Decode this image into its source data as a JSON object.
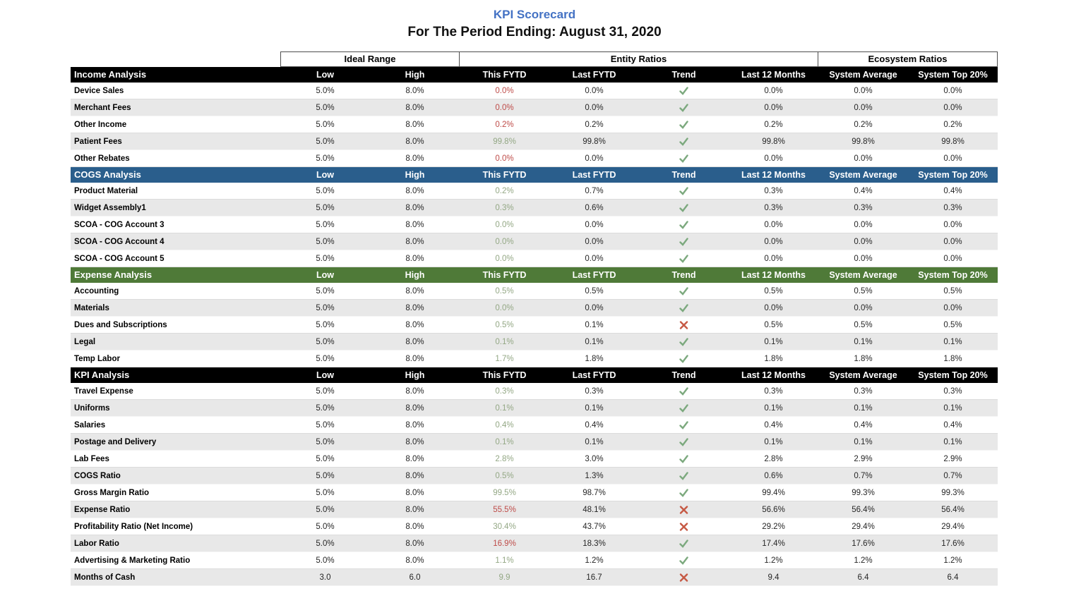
{
  "page": {
    "title": "KPI Scorecard",
    "subtitle": "For The Period Ending: August 31, 2020"
  },
  "colors": {
    "title": "#4472C4",
    "black_header": "#000000",
    "cogs_header": "#2A5E8C",
    "expense_header": "#4F7A38",
    "stripe": "#E8E8E8",
    "value_green": "#93A784",
    "value_red": "#BE4B48",
    "check_green": "#7CA97E",
    "x_red": "#C65944"
  },
  "table": {
    "group_headers": [
      {
        "label": "Ideal Range",
        "span": 2
      },
      {
        "label": "Entity Ratios",
        "span": 4
      },
      {
        "label": "Ecosystem Ratios",
        "span": 2
      }
    ],
    "columns": [
      "Low",
      "High",
      "This FYTD",
      "Last FYTD",
      "Trend",
      "Last 12 Months",
      "System Average",
      "System Top 20%"
    ],
    "row_keys": [
      "low",
      "high",
      "this_fytd",
      "last_fytd",
      "trend",
      "last_12_months",
      "system_average",
      "system_top_20"
    ],
    "sections": [
      {
        "name": "Income Analysis",
        "theme": "black",
        "rows": [
          {
            "label": "Device Sales",
            "low": "5.0%",
            "high": "8.0%",
            "this_fytd": "0.0%",
            "fytd_color": "red",
            "last_fytd": "0.0%",
            "trend": "check",
            "last_12_months": "0.0%",
            "system_average": "0.0%",
            "system_top_20": "0.0%"
          },
          {
            "label": "Merchant Fees",
            "low": "5.0%",
            "high": "8.0%",
            "this_fytd": "0.0%",
            "fytd_color": "red",
            "last_fytd": "0.0%",
            "trend": "check",
            "last_12_months": "0.0%",
            "system_average": "0.0%",
            "system_top_20": "0.0%"
          },
          {
            "label": "Other Income",
            "low": "5.0%",
            "high": "8.0%",
            "this_fytd": "0.2%",
            "fytd_color": "red",
            "last_fytd": "0.2%",
            "trend": "check",
            "last_12_months": "0.2%",
            "system_average": "0.2%",
            "system_top_20": "0.2%"
          },
          {
            "label": "Patient Fees",
            "low": "5.0%",
            "high": "8.0%",
            "this_fytd": "99.8%",
            "fytd_color": "green",
            "last_fytd": "99.8%",
            "trend": "check",
            "last_12_months": "99.8%",
            "system_average": "99.8%",
            "system_top_20": "99.8%"
          },
          {
            "label": "Other Rebates",
            "low": "5.0%",
            "high": "8.0%",
            "this_fytd": "0.0%",
            "fytd_color": "red",
            "last_fytd": "0.0%",
            "trend": "check",
            "last_12_months": "0.0%",
            "system_average": "0.0%",
            "system_top_20": "0.0%"
          }
        ]
      },
      {
        "name": "COGS Analysis",
        "theme": "blue",
        "rows": [
          {
            "label": "Product Material",
            "low": "5.0%",
            "high": "8.0%",
            "this_fytd": "0.2%",
            "fytd_color": "green",
            "last_fytd": "0.7%",
            "trend": "check",
            "last_12_months": "0.3%",
            "system_average": "0.4%",
            "system_top_20": "0.4%"
          },
          {
            "label": "Widget Assembly1",
            "low": "5.0%",
            "high": "8.0%",
            "this_fytd": "0.3%",
            "fytd_color": "green",
            "last_fytd": "0.6%",
            "trend": "check",
            "last_12_months": "0.3%",
            "system_average": "0.3%",
            "system_top_20": "0.3%"
          },
          {
            "label": "SCOA - COG Account 3",
            "low": "5.0%",
            "high": "8.0%",
            "this_fytd": "0.0%",
            "fytd_color": "green",
            "last_fytd": "0.0%",
            "trend": "check",
            "last_12_months": "0.0%",
            "system_average": "0.0%",
            "system_top_20": "0.0%"
          },
          {
            "label": "SCOA - COG Account 4",
            "low": "5.0%",
            "high": "8.0%",
            "this_fytd": "0.0%",
            "fytd_color": "green",
            "last_fytd": "0.0%",
            "trend": "check",
            "last_12_months": "0.0%",
            "system_average": "0.0%",
            "system_top_20": "0.0%"
          },
          {
            "label": "SCOA - COG Account 5",
            "low": "5.0%",
            "high": "8.0%",
            "this_fytd": "0.0%",
            "fytd_color": "green",
            "last_fytd": "0.0%",
            "trend": "check",
            "last_12_months": "0.0%",
            "system_average": "0.0%",
            "system_top_20": "0.0%"
          }
        ]
      },
      {
        "name": "Expense Analysis",
        "theme": "green",
        "rows": [
          {
            "label": "Accounting",
            "low": "5.0%",
            "high": "8.0%",
            "this_fytd": "0.5%",
            "fytd_color": "green",
            "last_fytd": "0.5%",
            "trend": "check",
            "last_12_months": "0.5%",
            "system_average": "0.5%",
            "system_top_20": "0.5%"
          },
          {
            "label": "Materials",
            "low": "5.0%",
            "high": "8.0%",
            "this_fytd": "0.0%",
            "fytd_color": "green",
            "last_fytd": "0.0%",
            "trend": "check",
            "last_12_months": "0.0%",
            "system_average": "0.0%",
            "system_top_20": "0.0%"
          },
          {
            "label": "Dues and Subscriptions",
            "low": "5.0%",
            "high": "8.0%",
            "this_fytd": "0.5%",
            "fytd_color": "green",
            "last_fytd": "0.1%",
            "trend": "x",
            "last_12_months": "0.5%",
            "system_average": "0.5%",
            "system_top_20": "0.5%"
          },
          {
            "label": "Legal",
            "low": "5.0%",
            "high": "8.0%",
            "this_fytd": "0.1%",
            "fytd_color": "green",
            "last_fytd": "0.1%",
            "trend": "check",
            "last_12_months": "0.1%",
            "system_average": "0.1%",
            "system_top_20": "0.1%"
          },
          {
            "label": "Temp Labor",
            "low": "5.0%",
            "high": "8.0%",
            "this_fytd": "1.7%",
            "fytd_color": "green",
            "last_fytd": "1.8%",
            "trend": "check",
            "last_12_months": "1.8%",
            "system_average": "1.8%",
            "system_top_20": "1.8%"
          }
        ]
      },
      {
        "name": "KPI Analysis",
        "theme": "black",
        "rows": [
          {
            "label": "Travel Expense",
            "low": "5.0%",
            "high": "8.0%",
            "this_fytd": "0.3%",
            "fytd_color": "green",
            "last_fytd": "0.3%",
            "trend": "check",
            "last_12_months": "0.3%",
            "system_average": "0.3%",
            "system_top_20": "0.3%"
          },
          {
            "label": "Uniforms",
            "low": "5.0%",
            "high": "8.0%",
            "this_fytd": "0.1%",
            "fytd_color": "green",
            "last_fytd": "0.1%",
            "trend": "check",
            "last_12_months": "0.1%",
            "system_average": "0.1%",
            "system_top_20": "0.1%"
          },
          {
            "label": "Salaries",
            "low": "5.0%",
            "high": "8.0%",
            "this_fytd": "0.4%",
            "fytd_color": "green",
            "last_fytd": "0.4%",
            "trend": "check",
            "last_12_months": "0.4%",
            "system_average": "0.4%",
            "system_top_20": "0.4%"
          },
          {
            "label": "Postage and Delivery",
            "low": "5.0%",
            "high": "8.0%",
            "this_fytd": "0.1%",
            "fytd_color": "green",
            "last_fytd": "0.1%",
            "trend": "check",
            "last_12_months": "0.1%",
            "system_average": "0.1%",
            "system_top_20": "0.1%"
          },
          {
            "label": "Lab Fees",
            "low": "5.0%",
            "high": "8.0%",
            "this_fytd": "2.8%",
            "fytd_color": "green",
            "last_fytd": "3.0%",
            "trend": "check",
            "last_12_months": "2.8%",
            "system_average": "2.9%",
            "system_top_20": "2.9%"
          },
          {
            "label": "COGS Ratio",
            "low": "5.0%",
            "high": "8.0%",
            "this_fytd": "0.5%",
            "fytd_color": "green",
            "last_fytd": "1.3%",
            "trend": "check",
            "last_12_months": "0.6%",
            "system_average": "0.7%",
            "system_top_20": "0.7%"
          },
          {
            "label": "Gross Margin Ratio",
            "low": "5.0%",
            "high": "8.0%",
            "this_fytd": "99.5%",
            "fytd_color": "green",
            "last_fytd": "98.7%",
            "trend": "check",
            "last_12_months": "99.4%",
            "system_average": "99.3%",
            "system_top_20": "99.3%"
          },
          {
            "label": "Expense Ratio",
            "low": "5.0%",
            "high": "8.0%",
            "this_fytd": "55.5%",
            "fytd_color": "red",
            "last_fytd": "48.1%",
            "trend": "x",
            "last_12_months": "56.6%",
            "system_average": "56.4%",
            "system_top_20": "56.4%"
          },
          {
            "label": "Profitability Ratio (Net Income)",
            "low": "5.0%",
            "high": "8.0%",
            "this_fytd": "30.4%",
            "fytd_color": "green",
            "last_fytd": "43.7%",
            "trend": "x",
            "last_12_months": "29.2%",
            "system_average": "29.4%",
            "system_top_20": "29.4%"
          },
          {
            "label": "Labor Ratio",
            "low": "5.0%",
            "high": "8.0%",
            "this_fytd": "16.9%",
            "fytd_color": "red",
            "last_fytd": "18.3%",
            "trend": "check",
            "last_12_months": "17.4%",
            "system_average": "17.6%",
            "system_top_20": "17.6%"
          },
          {
            "label": "Advertising & Marketing Ratio",
            "low": "5.0%",
            "high": "8.0%",
            "this_fytd": "1.1%",
            "fytd_color": "green",
            "last_fytd": "1.2%",
            "trend": "check",
            "last_12_months": "1.2%",
            "system_average": "1.2%",
            "system_top_20": "1.2%"
          },
          {
            "label": "Months of Cash",
            "low": "3.0",
            "high": "6.0",
            "this_fytd": "9.9",
            "fytd_color": "green",
            "last_fytd": "16.7",
            "trend": "x",
            "last_12_months": "9.4",
            "system_average": "6.4",
            "system_top_20": "6.4"
          }
        ]
      }
    ]
  }
}
